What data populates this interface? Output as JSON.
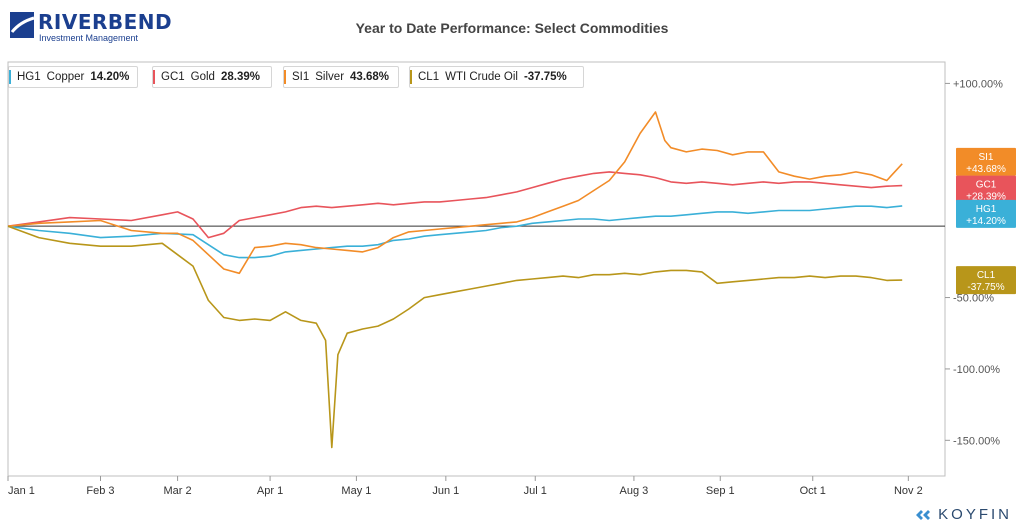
{
  "brand": {
    "logo_name": "RIVERBEND",
    "logo_sub": "Investment Management",
    "footer": "KOYFIN"
  },
  "chart_data": {
    "type": "line",
    "title": "Year to Date Performance: Select Commodities",
    "xlabel": "",
    "ylabel": "",
    "x_ticks": [
      "Jan 1",
      "Feb 3",
      "Mar 2",
      "Apr 1",
      "May 1",
      "Jun 1",
      "Jul 1",
      "Aug 3",
      "Sep 1",
      "Oct 1",
      "Nov 2"
    ],
    "y_ticks": [
      "+100.00%",
      "-50.00%",
      "-100.00%",
      "-150.00%"
    ],
    "ylim": [
      -175,
      115
    ],
    "grid": false,
    "legend_position": "top-left",
    "series": [
      {
        "symbol": "HG1",
        "name": "Copper",
        "change": "14.20%",
        "tag": "+14.20%",
        "color": "#3ab0d8",
        "points": [
          [
            0,
            0
          ],
          [
            10,
            -3
          ],
          [
            20,
            -5
          ],
          [
            30,
            -8
          ],
          [
            40,
            -7
          ],
          [
            50,
            -5
          ],
          [
            60,
            -6
          ],
          [
            65,
            -13
          ],
          [
            70,
            -20
          ],
          [
            75,
            -22
          ],
          [
            80,
            -22
          ],
          [
            85,
            -21
          ],
          [
            90,
            -18
          ],
          [
            95,
            -17
          ],
          [
            100,
            -16
          ],
          [
            105,
            -15
          ],
          [
            110,
            -14
          ],
          [
            115,
            -14
          ],
          [
            120,
            -13
          ],
          [
            125,
            -10
          ],
          [
            130,
            -9
          ],
          [
            135,
            -7
          ],
          [
            140,
            -6
          ],
          [
            145,
            -5
          ],
          [
            150,
            -4
          ],
          [
            155,
            -3
          ],
          [
            160,
            -1
          ],
          [
            165,
            0
          ],
          [
            170,
            2
          ],
          [
            175,
            3
          ],
          [
            180,
            4
          ],
          [
            185,
            5
          ],
          [
            190,
            5
          ],
          [
            195,
            4
          ],
          [
            200,
            5
          ],
          [
            205,
            6
          ],
          [
            210,
            7
          ],
          [
            215,
            7
          ],
          [
            220,
            8
          ],
          [
            225,
            9
          ],
          [
            230,
            10
          ],
          [
            235,
            10
          ],
          [
            240,
            9
          ],
          [
            245,
            10
          ],
          [
            250,
            11
          ],
          [
            255,
            11
          ],
          [
            260,
            11
          ],
          [
            265,
            12
          ],
          [
            270,
            13
          ],
          [
            275,
            14
          ],
          [
            280,
            14
          ],
          [
            285,
            13
          ],
          [
            290,
            14.2
          ]
        ]
      },
      {
        "symbol": "GC1",
        "name": "Gold",
        "change": "28.39%",
        "tag": "+28.39%",
        "color": "#e8545b",
        "points": [
          [
            0,
            0
          ],
          [
            10,
            3
          ],
          [
            20,
            6
          ],
          [
            30,
            5
          ],
          [
            40,
            4
          ],
          [
            50,
            8
          ],
          [
            55,
            10
          ],
          [
            60,
            5
          ],
          [
            65,
            -8
          ],
          [
            70,
            -5
          ],
          [
            75,
            4
          ],
          [
            80,
            6
          ],
          [
            85,
            8
          ],
          [
            90,
            10
          ],
          [
            95,
            13
          ],
          [
            100,
            14
          ],
          [
            105,
            13
          ],
          [
            110,
            14
          ],
          [
            115,
            15
          ],
          [
            120,
            16
          ],
          [
            125,
            15
          ],
          [
            130,
            16
          ],
          [
            135,
            17
          ],
          [
            140,
            17
          ],
          [
            145,
            18
          ],
          [
            150,
            19
          ],
          [
            155,
            20
          ],
          [
            160,
            22
          ],
          [
            165,
            24
          ],
          [
            170,
            27
          ],
          [
            175,
            30
          ],
          [
            180,
            33
          ],
          [
            185,
            35
          ],
          [
            190,
            37
          ],
          [
            195,
            38
          ],
          [
            200,
            37
          ],
          [
            205,
            36
          ],
          [
            210,
            34
          ],
          [
            215,
            31
          ],
          [
            220,
            30
          ],
          [
            225,
            31
          ],
          [
            230,
            30
          ],
          [
            235,
            29
          ],
          [
            240,
            30
          ],
          [
            245,
            31
          ],
          [
            250,
            30
          ],
          [
            255,
            31
          ],
          [
            260,
            31
          ],
          [
            265,
            30
          ],
          [
            270,
            29
          ],
          [
            275,
            28
          ],
          [
            280,
            27
          ],
          [
            285,
            28
          ],
          [
            290,
            28.4
          ]
        ]
      },
      {
        "symbol": "SI1",
        "name": "Silver",
        "change": "43.68%",
        "tag": "+43.68%",
        "color": "#f28c28",
        "points": [
          [
            0,
            0
          ],
          [
            10,
            2
          ],
          [
            20,
            3
          ],
          [
            30,
            4
          ],
          [
            40,
            -3
          ],
          [
            50,
            -5
          ],
          [
            55,
            -5
          ],
          [
            60,
            -10
          ],
          [
            65,
            -20
          ],
          [
            70,
            -30
          ],
          [
            75,
            -33
          ],
          [
            80,
            -15
          ],
          [
            85,
            -14
          ],
          [
            90,
            -12
          ],
          [
            95,
            -13
          ],
          [
            100,
            -15
          ],
          [
            105,
            -16
          ],
          [
            110,
            -17
          ],
          [
            115,
            -18
          ],
          [
            120,
            -15
          ],
          [
            125,
            -8
          ],
          [
            130,
            -4
          ],
          [
            135,
            -3
          ],
          [
            140,
            -2
          ],
          [
            145,
            -1
          ],
          [
            150,
            0
          ],
          [
            155,
            1
          ],
          [
            160,
            2
          ],
          [
            165,
            3
          ],
          [
            170,
            6
          ],
          [
            175,
            10
          ],
          [
            180,
            14
          ],
          [
            185,
            18
          ],
          [
            190,
            25
          ],
          [
            195,
            32
          ],
          [
            200,
            45
          ],
          [
            205,
            65
          ],
          [
            210,
            80
          ],
          [
            213,
            60
          ],
          [
            215,
            55
          ],
          [
            220,
            52
          ],
          [
            225,
            54
          ],
          [
            230,
            53
          ],
          [
            235,
            50
          ],
          [
            240,
            52
          ],
          [
            245,
            52
          ],
          [
            250,
            38
          ],
          [
            255,
            35
          ],
          [
            260,
            33
          ],
          [
            265,
            35
          ],
          [
            270,
            36
          ],
          [
            275,
            38
          ],
          [
            280,
            36
          ],
          [
            285,
            32
          ],
          [
            290,
            43.7
          ]
        ]
      },
      {
        "symbol": "CL1",
        "name": "WTI Crude Oil",
        "change": "-37.75%",
        "tag": "-37.75%",
        "color": "#b8961a",
        "points": [
          [
            0,
            0
          ],
          [
            10,
            -8
          ],
          [
            20,
            -12
          ],
          [
            30,
            -14
          ],
          [
            40,
            -14
          ],
          [
            50,
            -12
          ],
          [
            55,
            -20
          ],
          [
            60,
            -28
          ],
          [
            65,
            -52
          ],
          [
            70,
            -64
          ],
          [
            75,
            -66
          ],
          [
            80,
            -65
          ],
          [
            85,
            -66
          ],
          [
            90,
            -60
          ],
          [
            95,
            -66
          ],
          [
            100,
            -68
          ],
          [
            103,
            -80
          ],
          [
            105,
            -155
          ],
          [
            107,
            -90
          ],
          [
            110,
            -75
          ],
          [
            115,
            -72
          ],
          [
            120,
            -70
          ],
          [
            125,
            -65
          ],
          [
            130,
            -58
          ],
          [
            135,
            -50
          ],
          [
            140,
            -48
          ],
          [
            145,
            -46
          ],
          [
            150,
            -44
          ],
          [
            155,
            -42
          ],
          [
            160,
            -40
          ],
          [
            165,
            -38
          ],
          [
            170,
            -37
          ],
          [
            175,
            -36
          ],
          [
            180,
            -35
          ],
          [
            185,
            -36
          ],
          [
            190,
            -34
          ],
          [
            195,
            -34
          ],
          [
            200,
            -33
          ],
          [
            205,
            -34
          ],
          [
            210,
            -32
          ],
          [
            215,
            -31
          ],
          [
            220,
            -31
          ],
          [
            225,
            -32
          ],
          [
            230,
            -40
          ],
          [
            235,
            -39
          ],
          [
            240,
            -38
          ],
          [
            245,
            -37
          ],
          [
            250,
            -36
          ],
          [
            255,
            -36
          ],
          [
            260,
            -35
          ],
          [
            265,
            -36
          ],
          [
            270,
            -35
          ],
          [
            275,
            -35
          ],
          [
            280,
            -36
          ],
          [
            285,
            -38
          ],
          [
            290,
            -37.75
          ]
        ]
      }
    ]
  }
}
